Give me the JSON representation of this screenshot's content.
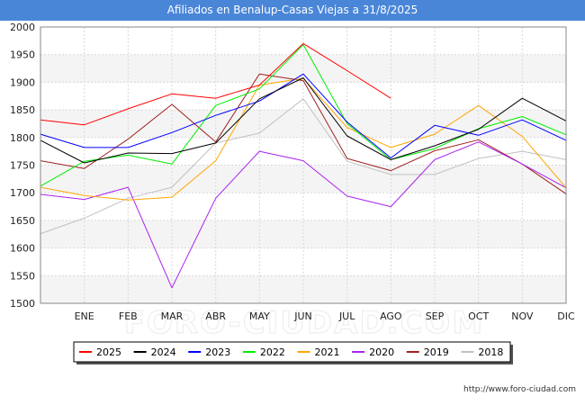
{
  "chart_data": {
    "type": "line",
    "title": "Afiliados en Benalup-Casas Viejas a 31/8/2025",
    "xlabel": "",
    "ylabel": "",
    "categories": [
      "",
      "ENE",
      "FEB",
      "MAR",
      "ABR",
      "MAY",
      "JUN",
      "JUL",
      "AGO",
      "SEP",
      "OCT",
      "NOV",
      "DIC"
    ],
    "ylim": [
      1500,
      2000
    ],
    "yticks": [
      1500,
      1550,
      1600,
      1650,
      1700,
      1750,
      1800,
      1850,
      1900,
      1950,
      2000
    ],
    "grid": true,
    "legend_position": "bottom",
    "series": [
      {
        "name": "2025",
        "color": "#ff0000",
        "values": [
          1832,
          1823,
          1852,
          1879,
          1871,
          1895,
          1970,
          1921,
          1871,
          null,
          null,
          null,
          null
        ]
      },
      {
        "name": "2024",
        "color": "#000000",
        "values": [
          1795,
          1754,
          1772,
          1771,
          1790,
          1870,
          1908,
          1803,
          1760,
          1785,
          1815,
          1871,
          1830
        ]
      },
      {
        "name": "2023",
        "color": "#0000ff",
        "values": [
          1806,
          1782,
          1782,
          1809,
          1840,
          1866,
          1915,
          1828,
          1763,
          1822,
          1804,
          1832,
          1795
        ]
      },
      {
        "name": "2022",
        "color": "#00ee00",
        "values": [
          1712,
          1757,
          1768,
          1752,
          1858,
          1888,
          1968,
          1825,
          1760,
          1780,
          1816,
          1838,
          1805
        ]
      },
      {
        "name": "2021",
        "color": "#ffa500",
        "values": [
          1710,
          1695,
          1687,
          1692,
          1758,
          1895,
          1907,
          1818,
          1782,
          1806,
          1858,
          1802,
          1709
        ]
      },
      {
        "name": "2020",
        "color": "#aa22ee",
        "values": [
          1697,
          1688,
          1710,
          1528,
          1690,
          1775,
          1758,
          1694,
          1675,
          1760,
          1792,
          1752,
          1709
        ]
      },
      {
        "name": "2019",
        "color": "#a02020",
        "values": [
          1758,
          1744,
          1797,
          1860,
          1792,
          1915,
          1903,
          1762,
          1740,
          1776,
          1796,
          1752,
          1698
        ]
      },
      {
        "name": "2018",
        "color": "#c0c0c0",
        "values": [
          1626,
          1654,
          1690,
          1710,
          1790,
          1808,
          1870,
          1757,
          1733,
          1733,
          1762,
          1775,
          1760
        ]
      }
    ]
  },
  "footer": {
    "url": "http://www.foro-ciudad.com"
  }
}
